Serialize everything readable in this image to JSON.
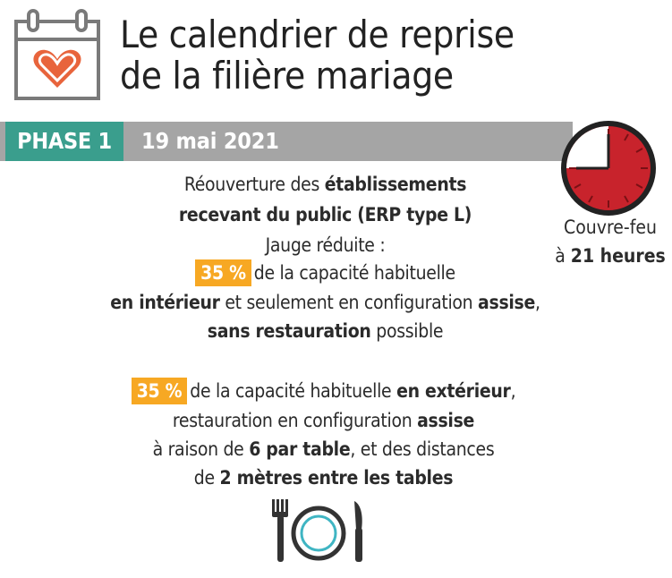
{
  "header": {
    "title_line1": "Le calendrier de reprise",
    "title_line2": "de la filière mariage",
    "icon": "calendar-heart-icon"
  },
  "phase": {
    "label": "PHASE 1",
    "date": "19 mai 2021",
    "badge_color": "#3a9e8d",
    "bar_color": "#a5a5a5"
  },
  "curfew": {
    "icon": "clock-icon",
    "line1": "Couvre-feu",
    "line2_prefix": "à ",
    "line2_bold": "21 heures"
  },
  "block1": {
    "line1_plain": "Réouverture des ",
    "line1_bold": "établissements",
    "line2_bold": "recevant du public (ERP type L)",
    "line3": "Jauge réduite :",
    "line4_highlight": "35 %",
    "line4_plain": "de la capacité habituelle",
    "line5_bold1": "en intérieur",
    "line5_plain": " et seulement en configuration ",
    "line5_bold2": "assise",
    "line5_end": ",",
    "line6_bold": "sans restauration",
    "line6_plain": " possible"
  },
  "block2": {
    "line1_highlight": "35 %",
    "line1_plain": "de la capacité habituelle ",
    "line1_bold": "en extérieur",
    "line1_end": ",",
    "line2_plain": "restauration en configuration ",
    "line2_bold": "assise",
    "line3_plain1": "à raison de ",
    "line3_bold": "6 par table",
    "line3_plain2": ", et des distances",
    "line4_plain": "de ",
    "line4_bold": "2 mètres entre les tables"
  },
  "footer_icon": "cutlery-plate-icon",
  "colors": {
    "highlight": "#f7a823",
    "clock_red": "#c8232c",
    "accent_teal": "#3a9e8d",
    "icon_orange": "#e8643c"
  }
}
